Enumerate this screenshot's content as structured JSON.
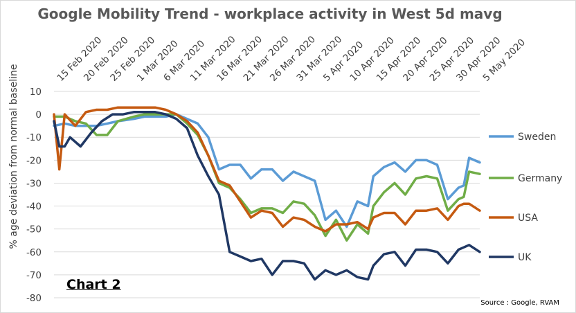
{
  "chart_data": {
    "type": "line",
    "title": "Google Mobility Trend - workplace activity in West 5d mavg",
    "ylabel": "% age deviation from normal baseline",
    "xlabel": "",
    "ylim": [
      -80,
      10
    ],
    "yticks": [
      10,
      0,
      -10,
      -20,
      -30,
      -40,
      -50,
      -60,
      -70,
      -80
    ],
    "xtick_labels": [
      "15 Feb 2020",
      "20 Feb 2020",
      "25 Feb 2020",
      "1 Mar 2020",
      "6 Mar 2020",
      "11 Mar 2020",
      "16 Mar 2020",
      "21 Mar 2020",
      "26 Mar 2020",
      "31 Mar 2020",
      "5 Apr 2020",
      "10 Apr 2020",
      "15 Apr 2020",
      "20 Apr 2020",
      "25 Apr 2020",
      "30 Apr 2020",
      "5 May 2020"
    ],
    "x_start": "2020-02-15",
    "x_end": "2020-05-05",
    "grid": "horizontal",
    "legend_position": "right",
    "annotation": "Chart 2",
    "source": "Source : Google, RVAM",
    "series": [
      {
        "name": "Sweden",
        "color": "#5b9bd5",
        "dates": [
          "2020-02-15",
          "2020-02-17",
          "2020-02-19",
          "2020-02-21",
          "2020-02-23",
          "2020-02-25",
          "2020-02-27",
          "2020-03-01",
          "2020-03-03",
          "2020-03-05",
          "2020-03-07",
          "2020-03-09",
          "2020-03-11",
          "2020-03-13",
          "2020-03-15",
          "2020-03-17",
          "2020-03-19",
          "2020-03-21",
          "2020-03-23",
          "2020-03-25",
          "2020-03-27",
          "2020-03-29",
          "2020-03-31",
          "2020-04-02",
          "2020-04-04",
          "2020-04-06",
          "2020-04-08",
          "2020-04-10",
          "2020-04-12",
          "2020-04-14",
          "2020-04-15",
          "2020-04-17",
          "2020-04-19",
          "2020-04-21",
          "2020-04-23",
          "2020-04-25",
          "2020-04-27",
          "2020-04-29",
          "2020-05-01",
          "2020-05-02",
          "2020-05-03",
          "2020-05-05"
        ],
        "values": [
          -5,
          -4,
          -5,
          -5,
          -5,
          -4,
          -3,
          -2,
          -1,
          -1,
          -1,
          0,
          -2,
          -4,
          -10,
          -24,
          -22,
          -22,
          -28,
          -24,
          -24,
          -29,
          -25,
          -27,
          -29,
          -46,
          -42,
          -49,
          -38,
          -40,
          -27,
          -23,
          -21,
          -25,
          -20,
          -20,
          -22,
          -37,
          -32,
          -31,
          -19,
          -21
        ]
      },
      {
        "name": "Germany",
        "color": "#70ad47",
        "dates": [
          "2020-02-15",
          "2020-02-17",
          "2020-02-19",
          "2020-02-21",
          "2020-02-23",
          "2020-02-25",
          "2020-02-27",
          "2020-03-01",
          "2020-03-03",
          "2020-03-05",
          "2020-03-07",
          "2020-03-09",
          "2020-03-11",
          "2020-03-13",
          "2020-03-15",
          "2020-03-17",
          "2020-03-19",
          "2020-03-21",
          "2020-03-23",
          "2020-03-25",
          "2020-03-27",
          "2020-03-29",
          "2020-03-31",
          "2020-04-02",
          "2020-04-04",
          "2020-04-06",
          "2020-04-08",
          "2020-04-10",
          "2020-04-12",
          "2020-04-14",
          "2020-04-15",
          "2020-04-17",
          "2020-04-19",
          "2020-04-21",
          "2020-04-23",
          "2020-04-25",
          "2020-04-27",
          "2020-04-29",
          "2020-05-01",
          "2020-05-02",
          "2020-05-03",
          "2020-05-05"
        ],
        "values": [
          -1,
          -1,
          -3,
          -4,
          -9,
          -9,
          -3,
          -1,
          0,
          0,
          0,
          0,
          -4,
          -9,
          -18,
          -30,
          -32,
          -37,
          -43,
          -41,
          -41,
          -43,
          -38,
          -39,
          -44,
          -53,
          -46,
          -55,
          -48,
          -52,
          -40,
          -34,
          -30,
          -35,
          -28,
          -27,
          -28,
          -42,
          -37,
          -36,
          -25,
          -26
        ]
      },
      {
        "name": "USA",
        "color": "#c55a11",
        "dates": [
          "2020-02-15",
          "2020-02-16",
          "2020-02-17",
          "2020-02-19",
          "2020-02-21",
          "2020-02-23",
          "2020-02-25",
          "2020-02-27",
          "2020-03-01",
          "2020-03-03",
          "2020-03-05",
          "2020-03-07",
          "2020-03-09",
          "2020-03-11",
          "2020-03-13",
          "2020-03-15",
          "2020-03-17",
          "2020-03-19",
          "2020-03-21",
          "2020-03-23",
          "2020-03-25",
          "2020-03-27",
          "2020-03-29",
          "2020-03-31",
          "2020-04-02",
          "2020-04-04",
          "2020-04-06",
          "2020-04-08",
          "2020-04-10",
          "2020-04-12",
          "2020-04-14",
          "2020-04-15",
          "2020-04-17",
          "2020-04-19",
          "2020-04-21",
          "2020-04-23",
          "2020-04-25",
          "2020-04-27",
          "2020-04-29",
          "2020-05-01",
          "2020-05-02",
          "2020-05-03",
          "2020-05-05"
        ],
        "values": [
          0,
          -24,
          0,
          -5,
          1,
          2,
          2,
          3,
          3,
          3,
          3,
          2,
          0,
          -3,
          -8,
          -18,
          -29,
          -31,
          -38,
          -45,
          -42,
          -43,
          -49,
          -45,
          -46,
          -49,
          -51,
          -48,
          -48,
          -47,
          -50,
          -45,
          -43,
          -43,
          -48,
          -42,
          -42,
          -41,
          -46,
          -40,
          -39,
          -39,
          -42
        ]
      },
      {
        "name": "UK",
        "color": "#203864",
        "dates": [
          "2020-02-15",
          "2020-02-16",
          "2020-02-17",
          "2020-02-18",
          "2020-02-20",
          "2020-02-22",
          "2020-02-24",
          "2020-02-26",
          "2020-02-28",
          "2020-03-01",
          "2020-03-03",
          "2020-03-05",
          "2020-03-07",
          "2020-03-09",
          "2020-03-11",
          "2020-03-13",
          "2020-03-15",
          "2020-03-17",
          "2020-03-19",
          "2020-03-21",
          "2020-03-23",
          "2020-03-25",
          "2020-03-27",
          "2020-03-29",
          "2020-03-31",
          "2020-04-02",
          "2020-04-04",
          "2020-04-06",
          "2020-04-08",
          "2020-04-10",
          "2020-04-12",
          "2020-04-14",
          "2020-04-15",
          "2020-04-17",
          "2020-04-19",
          "2020-04-21",
          "2020-04-23",
          "2020-04-25",
          "2020-04-27",
          "2020-04-29",
          "2020-05-01",
          "2020-05-02",
          "2020-05-03",
          "2020-05-05"
        ],
        "values": [
          -3,
          -14,
          -14,
          -10,
          -14,
          -8,
          -3,
          0,
          0,
          1,
          1,
          1,
          0,
          -2,
          -6,
          -18,
          -27,
          -35,
          -60,
          -62,
          -64,
          -63,
          -70,
          -64,
          -64,
          -65,
          -72,
          -68,
          -70,
          -68,
          -71,
          -72,
          -66,
          -61,
          -60,
          -66,
          -59,
          -59,
          -60,
          -65,
          -59,
          -58,
          -57,
          -60
        ]
      }
    ]
  }
}
